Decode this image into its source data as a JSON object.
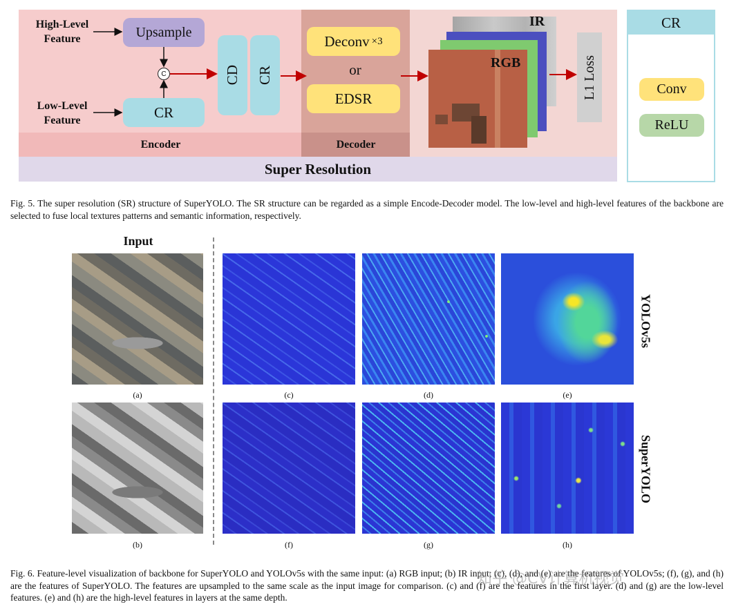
{
  "fig5": {
    "inputs": {
      "high": "High-Level\nFeature",
      "low": "Low-Level\nFeature"
    },
    "blocks": {
      "upsample": "Upsample",
      "concat": "C",
      "cr_low": "CR",
      "cd": "CD",
      "cr_mid": "CR",
      "deconv": "Deconv",
      "deconv_mult": "×3",
      "or": "or",
      "edsr": "EDSR",
      "ir": "IR",
      "rgb": "RGB",
      "loss": "L1 Loss"
    },
    "sections": {
      "encoder": "Encoder",
      "decoder": "Decoder",
      "super_resolution": "Super Resolution"
    },
    "cr_legend": {
      "title": "CR",
      "conv": "Conv",
      "relu": "ReLU"
    },
    "caption": "Fig. 5.  The super resolution (SR) structure of SuperYOLO. The SR structure can be regarded as a simple Encode-Decoder model. The low-level and high-level features of the backbone are selected to fuse local textures patterns and semantic information, respectively."
  },
  "fig6": {
    "input_title": "Input",
    "row_labels": {
      "top": "YOLOv5s",
      "bottom": "SuperYOLO"
    },
    "sublabels": [
      "(a)",
      "(c)",
      "(d)",
      "(e)",
      "(b)",
      "(f)",
      "(g)",
      "(h)"
    ],
    "caption": "Fig. 6.  Feature-level visualization of backbone for SuperYOLO and YOLOv5s with the same input: (a) RGB input; (b) IR input; (c), (d), and (e) are the features of YOLOv5s; (f), (g), and (h) are the features of SuperYOLO. The features are upsampled to the same scale as the input image for comparison. (c) and (f) are the features in the first layer. (d) and (g) are the low-level features. (e) and (h) are the high-level features in layers at the same depth."
  },
  "watermark": "知乎 @CV计算机视觉",
  "colors": {
    "encoder_bg": "#f6cccc",
    "decoder_bg": "#d9a49a",
    "sr_bar": "#e0d8ea",
    "upsample": "#b4a7d6",
    "cyan_block": "#a9dce5",
    "yellow_block": "#ffe27a",
    "arrow": "#c00000",
    "feature_blue": "#2a3fd6",
    "relu_green": "#b7d7a8"
  }
}
